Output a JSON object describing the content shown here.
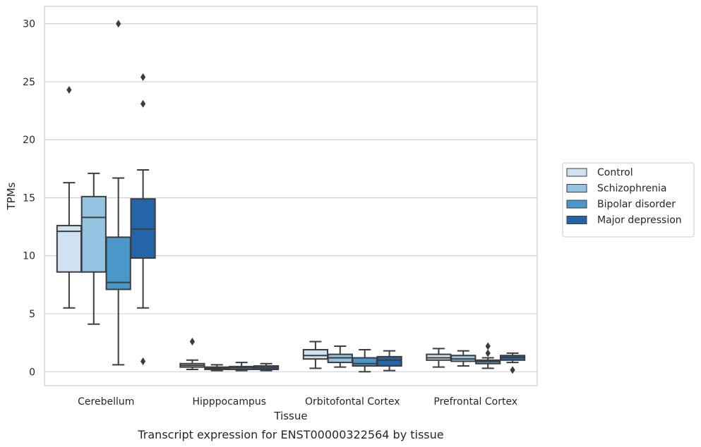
{
  "chart_data": {
    "type": "box",
    "caption": "Transcript expression for ENST00000322564 by tissue",
    "xlabel": "Tissue",
    "ylabel": "TPMs",
    "ylim": [
      -1.2,
      31.5
    ],
    "yticks": [
      0,
      5,
      10,
      15,
      20,
      25,
      30
    ],
    "grid": true,
    "legend_placement": "right",
    "categories": [
      "Cerebellum",
      "Hipppocampus",
      "Orbitofontal Cortex",
      "Prefrontal Cortex"
    ],
    "series": [
      {
        "name": "Control",
        "color": "#d0e1f2",
        "boxes": [
          {
            "whisker_low": 5.5,
            "q1": 8.6,
            "median": 12.1,
            "q3": 12.6,
            "whisker_high": 16.3,
            "outliers": [
              24.3
            ]
          },
          {
            "whisker_low": 0.2,
            "q1": 0.4,
            "median": 0.55,
            "q3": 0.7,
            "whisker_high": 1.0,
            "outliers": [
              2.6
            ]
          },
          {
            "whisker_low": 0.3,
            "q1": 1.1,
            "median": 1.4,
            "q3": 1.9,
            "whisker_high": 2.6,
            "outliers": []
          },
          {
            "whisker_low": 0.4,
            "q1": 1.0,
            "median": 1.2,
            "q3": 1.5,
            "whisker_high": 2.0,
            "outliers": []
          }
        ]
      },
      {
        "name": "Schizophrenia",
        "color": "#94c4df",
        "boxes": [
          {
            "whisker_low": 4.1,
            "q1": 8.6,
            "median": 13.3,
            "q3": 15.1,
            "whisker_high": 17.1,
            "outliers": []
          },
          {
            "whisker_low": 0.1,
            "q1": 0.2,
            "median": 0.3,
            "q3": 0.4,
            "whisker_high": 0.6,
            "outliers": []
          },
          {
            "whisker_low": 0.4,
            "q1": 0.8,
            "median": 1.2,
            "q3": 1.5,
            "whisker_high": 2.2,
            "outliers": []
          },
          {
            "whisker_low": 0.5,
            "q1": 0.9,
            "median": 1.1,
            "q3": 1.4,
            "whisker_high": 1.8,
            "outliers": []
          }
        ]
      },
      {
        "name": "Bipolar disorder",
        "color": "#4a98c9",
        "boxes": [
          {
            "whisker_low": 0.6,
            "q1": 7.1,
            "median": 7.7,
            "q3": 11.6,
            "whisker_high": 16.7,
            "outliers": [
              30.0
            ]
          },
          {
            "whisker_low": 0.1,
            "q1": 0.2,
            "median": 0.35,
            "q3": 0.45,
            "whisker_high": 0.8,
            "outliers": []
          },
          {
            "whisker_low": 0.0,
            "q1": 0.5,
            "median": 0.7,
            "q3": 1.2,
            "whisker_high": 1.9,
            "outliers": []
          },
          {
            "whisker_low": 0.3,
            "q1": 0.7,
            "median": 0.9,
            "q3": 1.0,
            "whisker_high": 1.2,
            "outliers": [
              1.6,
              2.2
            ]
          }
        ]
      },
      {
        "name": "Major depression",
        "color": "#2464a8",
        "boxes": [
          {
            "whisker_low": 5.5,
            "q1": 9.8,
            "median": 12.3,
            "q3": 14.9,
            "whisker_high": 17.4,
            "outliers": [
              25.4,
              23.1,
              0.9
            ]
          },
          {
            "whisker_low": 0.1,
            "q1": 0.2,
            "median": 0.35,
            "q3": 0.5,
            "whisker_high": 0.7,
            "outliers": []
          },
          {
            "whisker_low": 0.1,
            "q1": 0.5,
            "median": 1.0,
            "q3": 1.3,
            "whisker_high": 1.8,
            "outliers": []
          },
          {
            "whisker_low": 0.8,
            "q1": 1.0,
            "median": 1.25,
            "q3": 1.4,
            "whisker_high": 1.6,
            "outliers": [
              0.15
            ]
          }
        ]
      }
    ]
  }
}
